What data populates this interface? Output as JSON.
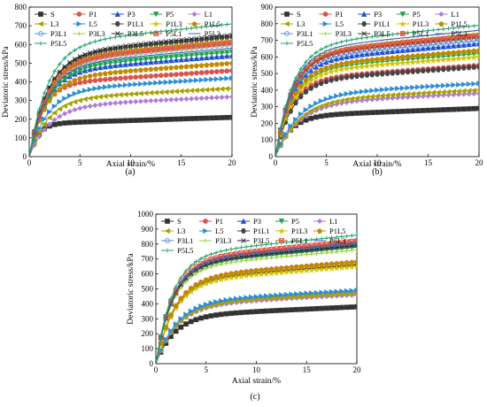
{
  "chart_data": [
    {
      "type": "line",
      "panel_label": "(a)",
      "xlabel": "Axial strain/%",
      "ylabel": "Deviatoric stress/kPa",
      "xlim": [
        0,
        20
      ],
      "ylim": [
        0,
        800
      ],
      "xticks": [
        0,
        5,
        10,
        15,
        20
      ],
      "yticks": [
        0,
        100,
        200,
        300,
        400,
        500,
        600,
        700,
        800
      ],
      "legend_position": "top-left",
      "legend_columns": 5,
      "series": [
        {
          "name": "S",
          "color": "#333333",
          "marker": "square",
          "final": 210,
          "k": 1.2
        },
        {
          "name": "P1",
          "color": "#d9534f",
          "marker": "circle",
          "final": 460,
          "k": 0.75
        },
        {
          "name": "P3",
          "color": "#1f4fd1",
          "marker": "triangle",
          "final": 540,
          "k": 0.6
        },
        {
          "name": "P5",
          "color": "#1aa34a",
          "marker": "tri-down",
          "final": 560,
          "k": 0.55
        },
        {
          "name": "L1",
          "color": "#b07cd8",
          "marker": "diamond",
          "final": 320,
          "k": 0.5
        },
        {
          "name": "L3",
          "color": "#a8a000",
          "marker": "tri-left",
          "final": 365,
          "k": 0.55
        },
        {
          "name": "L5",
          "color": "#2a8fd6",
          "marker": "tri-right",
          "final": 420,
          "k": 0.55
        },
        {
          "name": "P1L1",
          "color": "#444444",
          "marker": "hexagon",
          "final": 640,
          "k": 0.55
        },
        {
          "name": "P1L3",
          "color": "#d4c400",
          "marker": "star",
          "final": 620,
          "k": 0.55
        },
        {
          "name": "P1L5",
          "color": "#c08a00",
          "marker": "pentagon",
          "final": 500,
          "k": 0.6
        },
        {
          "name": "P3L1",
          "color": "#5b8fe0",
          "marker": "circle-open",
          "final": 600,
          "k": 0.55
        },
        {
          "name": "P3L3",
          "color": "#9ad02a",
          "marker": "plus",
          "final": 600,
          "k": 0.55
        },
        {
          "name": "P3L5",
          "color": "#2c2c2c",
          "marker": "x",
          "final": 650,
          "k": 0.55
        },
        {
          "name": "P5L1",
          "color": "#e0503a",
          "marker": "x-square",
          "final": 610,
          "k": 0.55
        },
        {
          "name": "P5L3",
          "color": "#3a5fb0",
          "marker": "dash",
          "final": 580,
          "k": 0.55
        },
        {
          "name": "P5L5",
          "color": "#1fa36a",
          "marker": "plus",
          "final": 710,
          "k": 0.55
        }
      ]
    },
    {
      "type": "line",
      "panel_label": "(b)",
      "xlabel": "Axial strain/%",
      "ylabel": "Deviatoric stress/kPa",
      "xlim": [
        0,
        20
      ],
      "ylim": [
        0,
        900
      ],
      "xticks": [
        0,
        5,
        10,
        15,
        20
      ],
      "yticks": [
        0,
        100,
        200,
        300,
        400,
        500,
        600,
        700,
        800,
        900
      ],
      "legend_position": "top-left",
      "legend_columns": 5,
      "series": [
        {
          "name": "S",
          "color": "#333333",
          "marker": "square",
          "final": 290,
          "k": 0.7
        },
        {
          "name": "P1",
          "color": "#d9534f",
          "marker": "circle",
          "final": 550,
          "k": 0.65
        },
        {
          "name": "P3",
          "color": "#1f4fd1",
          "marker": "triangle",
          "final": 680,
          "k": 0.6
        },
        {
          "name": "P5",
          "color": "#1aa34a",
          "marker": "tri-down",
          "final": 620,
          "k": 0.6
        },
        {
          "name": "L1",
          "color": "#b07cd8",
          "marker": "diamond",
          "final": 380,
          "k": 0.45
        },
        {
          "name": "L3",
          "color": "#a8a000",
          "marker": "tri-left",
          "final": 400,
          "k": 0.45
        },
        {
          "name": "L5",
          "color": "#2a8fd6",
          "marker": "tri-right",
          "final": 440,
          "k": 0.45
        },
        {
          "name": "P1L1",
          "color": "#444444",
          "marker": "hexagon",
          "final": 540,
          "k": 0.6
        },
        {
          "name": "P1L3",
          "color": "#d4c400",
          "marker": "star",
          "final": 600,
          "k": 0.6
        },
        {
          "name": "P1L5",
          "color": "#c08a00",
          "marker": "pentagon",
          "final": 640,
          "k": 0.6
        },
        {
          "name": "P3L1",
          "color": "#5b8fe0",
          "marker": "circle-open",
          "final": 700,
          "k": 0.6
        },
        {
          "name": "P3L3",
          "color": "#9ad02a",
          "marker": "plus",
          "final": 740,
          "k": 0.6
        },
        {
          "name": "P3L5",
          "color": "#2c2c2c",
          "marker": "x",
          "final": 720,
          "k": 0.6
        },
        {
          "name": "P5L1",
          "color": "#e0503a",
          "marker": "x-square",
          "final": 730,
          "k": 0.6
        },
        {
          "name": "P5L3",
          "color": "#3a5fb0",
          "marker": "dash",
          "final": 760,
          "k": 0.6
        },
        {
          "name": "P5L5",
          "color": "#1fa36a",
          "marker": "plus",
          "final": 790,
          "k": 0.6
        }
      ]
    },
    {
      "type": "line",
      "panel_label": "(c)",
      "xlabel": "Axial strain/%",
      "ylabel": "Deviatoric stress/kPa",
      "xlim": [
        0,
        20
      ],
      "ylim": [
        0,
        1000
      ],
      "xticks": [
        0,
        5,
        10,
        15,
        20
      ],
      "yticks": [
        0,
        100,
        200,
        300,
        400,
        500,
        600,
        700,
        800,
        900,
        1000
      ],
      "legend_position": "top-left",
      "legend_columns": 5,
      "series": [
        {
          "name": "S",
          "color": "#333333",
          "marker": "square",
          "final": 380,
          "k": 0.55
        },
        {
          "name": "P1",
          "color": "#d9534f",
          "marker": "circle",
          "final": 680,
          "k": 0.55
        },
        {
          "name": "P3",
          "color": "#1f4fd1",
          "marker": "triangle",
          "final": 800,
          "k": 0.6
        },
        {
          "name": "P5",
          "color": "#1aa34a",
          "marker": "tri-down",
          "final": 780,
          "k": 0.6
        },
        {
          "name": "L1",
          "color": "#b07cd8",
          "marker": "diamond",
          "final": 460,
          "k": 0.5
        },
        {
          "name": "L3",
          "color": "#a8a000",
          "marker": "tri-left",
          "final": 470,
          "k": 0.5
        },
        {
          "name": "L5",
          "color": "#2a8fd6",
          "marker": "tri-right",
          "final": 490,
          "k": 0.5
        },
        {
          "name": "P1L1",
          "color": "#444444",
          "marker": "hexagon",
          "final": 660,
          "k": 0.55
        },
        {
          "name": "P1L3",
          "color": "#d4c400",
          "marker": "star",
          "final": 650,
          "k": 0.55
        },
        {
          "name": "P1L5",
          "color": "#c08a00",
          "marker": "pentagon",
          "final": 680,
          "k": 0.55
        },
        {
          "name": "P3L1",
          "color": "#5b8fe0",
          "marker": "circle-open",
          "final": 800,
          "k": 0.6
        },
        {
          "name": "P3L3",
          "color": "#9ad02a",
          "marker": "plus",
          "final": 760,
          "k": 0.6
        },
        {
          "name": "P3L5",
          "color": "#2c2c2c",
          "marker": "x",
          "final": 790,
          "k": 0.6
        },
        {
          "name": "P5L1",
          "color": "#e0503a",
          "marker": "x-square",
          "final": 820,
          "k": 0.6
        },
        {
          "name": "P5L3",
          "color": "#3a5fb0",
          "marker": "dash",
          "final": 810,
          "k": 0.6
        },
        {
          "name": "P5L5",
          "color": "#1fa36a",
          "marker": "plus",
          "final": 860,
          "k": 0.6
        }
      ]
    }
  ]
}
